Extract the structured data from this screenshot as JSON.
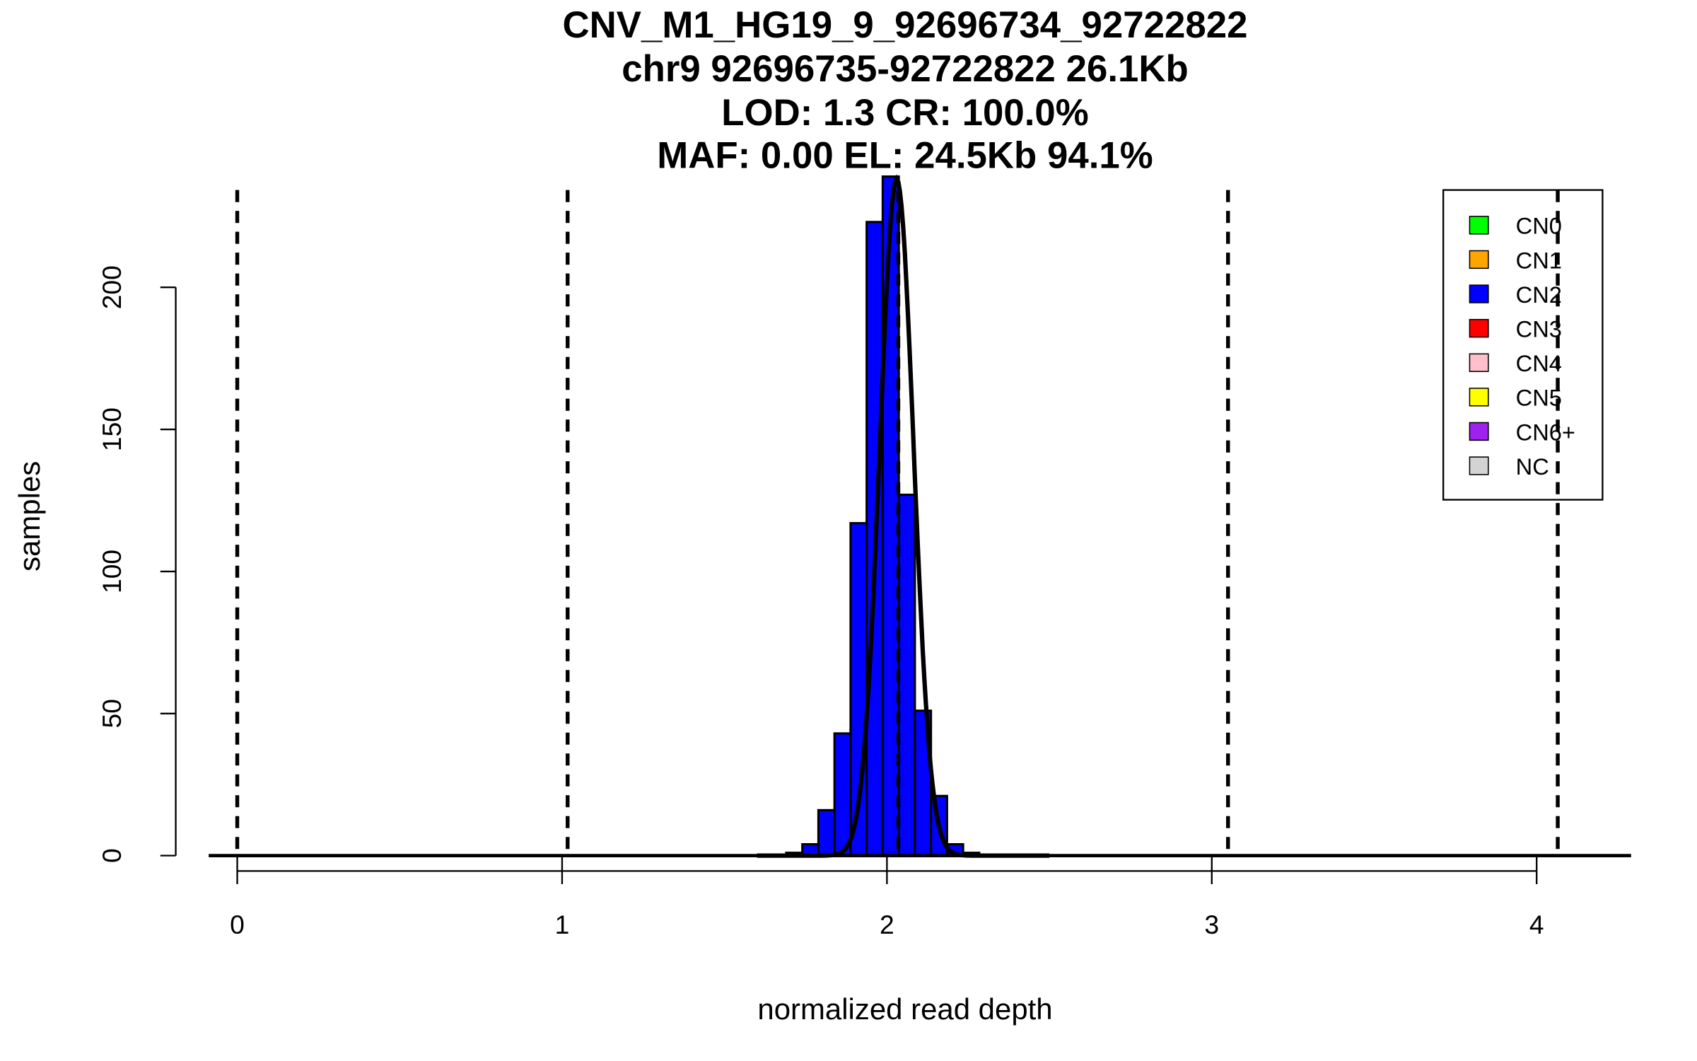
{
  "chart_data": {
    "type": "bar",
    "title_lines": [
      "CNV_M1_HG19_9_92696734_92722822",
      "chr9 92696735-92722822 26.1Kb",
      "LOD: 1.3 CR: 100.0%",
      "MAF: 0.00 EL: 24.5Kb 94.1%"
    ],
    "xlabel": "normalized read depth",
    "ylabel": "samples",
    "xlim": [
      -0.1,
      4.3
    ],
    "ylim": [
      0,
      240
    ],
    "x_ticks": [
      0,
      1,
      2,
      3,
      4
    ],
    "x_tick_labels": [
      "0",
      "1",
      "2",
      "3",
      "4"
    ],
    "y_ticks": [
      0,
      50,
      100,
      150,
      200
    ],
    "y_tick_labels": [
      "0",
      "50",
      "100",
      "150",
      "200"
    ],
    "histogram": {
      "bin_start": 1.69,
      "bin_width": 0.0495,
      "counts": [
        1,
        4,
        16,
        43,
        117,
        223,
        239,
        127,
        51,
        21,
        4,
        1
      ],
      "fill": "#0000FF"
    },
    "fit_curve": {
      "mean": 2.03,
      "sd": 0.052,
      "n": 627
    },
    "copy_number_means": [
      0,
      1.017,
      2.035,
      3.05,
      4.065
    ],
    "legend": {
      "position": "top-right",
      "entries": [
        {
          "label": "CN0",
          "color": "#00FF00"
        },
        {
          "label": "CN1",
          "color": "#FFA500"
        },
        {
          "label": "CN2",
          "color": "#0000FF"
        },
        {
          "label": "CN3",
          "color": "#FF0000"
        },
        {
          "label": "CN4",
          "color": "#FFC0CB"
        },
        {
          "label": "CN5",
          "color": "#FFFF00"
        },
        {
          "label": "CN6+",
          "color": "#A020F0"
        },
        {
          "label": "NC",
          "color": "#D3D3D3"
        }
      ]
    }
  }
}
